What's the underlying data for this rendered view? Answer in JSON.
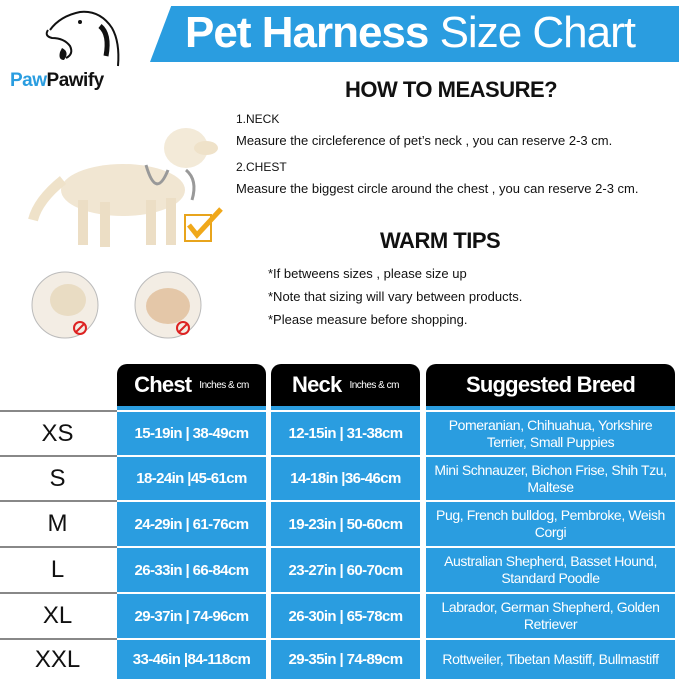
{
  "brand": {
    "part1": "Paw",
    "part2": "Pawify"
  },
  "banner": {
    "bold": "Pet Harness",
    "light": " Size Chart",
    "color": "#2a9de0"
  },
  "measure": {
    "title": "HOW TO MEASURE?",
    "neck_label": "1.NECK",
    "neck_text": "Measure the circleference of pet’s neck , you can reserve 2-3 cm.",
    "chest_label": "2.CHEST",
    "chest_text": "Measure the biggest circle around the chest , you can reserve 2-3 cm."
  },
  "tips": {
    "title": "WARM TIPS",
    "items": [
      "*If betweens sizes , please size up",
      "*Note that sizing will vary between products.",
      "*Please measure before shopping."
    ]
  },
  "table": {
    "headers": {
      "chest": "Chest",
      "chest_unit": "Inches & cm",
      "neck": "Neck",
      "neck_unit": "Inches & cm",
      "breed": "Suggested Breed"
    },
    "rows": [
      {
        "size": "XS",
        "chest": "15-19in | 38-49cm",
        "neck": "12-15in | 31-38cm",
        "breed": "Pomeranian, Chihuahua, Yorkshire Terrier, Small Puppies"
      },
      {
        "size": "S",
        "chest": "18-24in |45-61cm",
        "neck": "14-18in |36-46cm",
        "breed": "Mini Schnauzer, Bichon Frise, Shih Tzu, Maltese"
      },
      {
        "size": "M",
        "chest": "24-29in | 61-76cm",
        "neck": "19-23in | 50-60cm",
        "breed": "Pug, French bulldog, Pembroke, Weish Corgi"
      },
      {
        "size": "L",
        "chest": "26-33in | 66-84cm",
        "neck": "23-27in | 60-70cm",
        "breed": "Australian Shepherd, Basset Hound, Standard Poodle"
      },
      {
        "size": "XL",
        "chest": "29-37in | 74-96cm",
        "neck": "26-30in | 65-78cm",
        "breed": "Labrador, German Shepherd, Golden Retriever"
      },
      {
        "size": "XXL",
        "chest": "33-46in |84-118cm",
        "neck": "29-35in | 74-89cm",
        "breed": "Rottweiler, Tibetan Mastiff, Bullmastiff"
      }
    ]
  }
}
